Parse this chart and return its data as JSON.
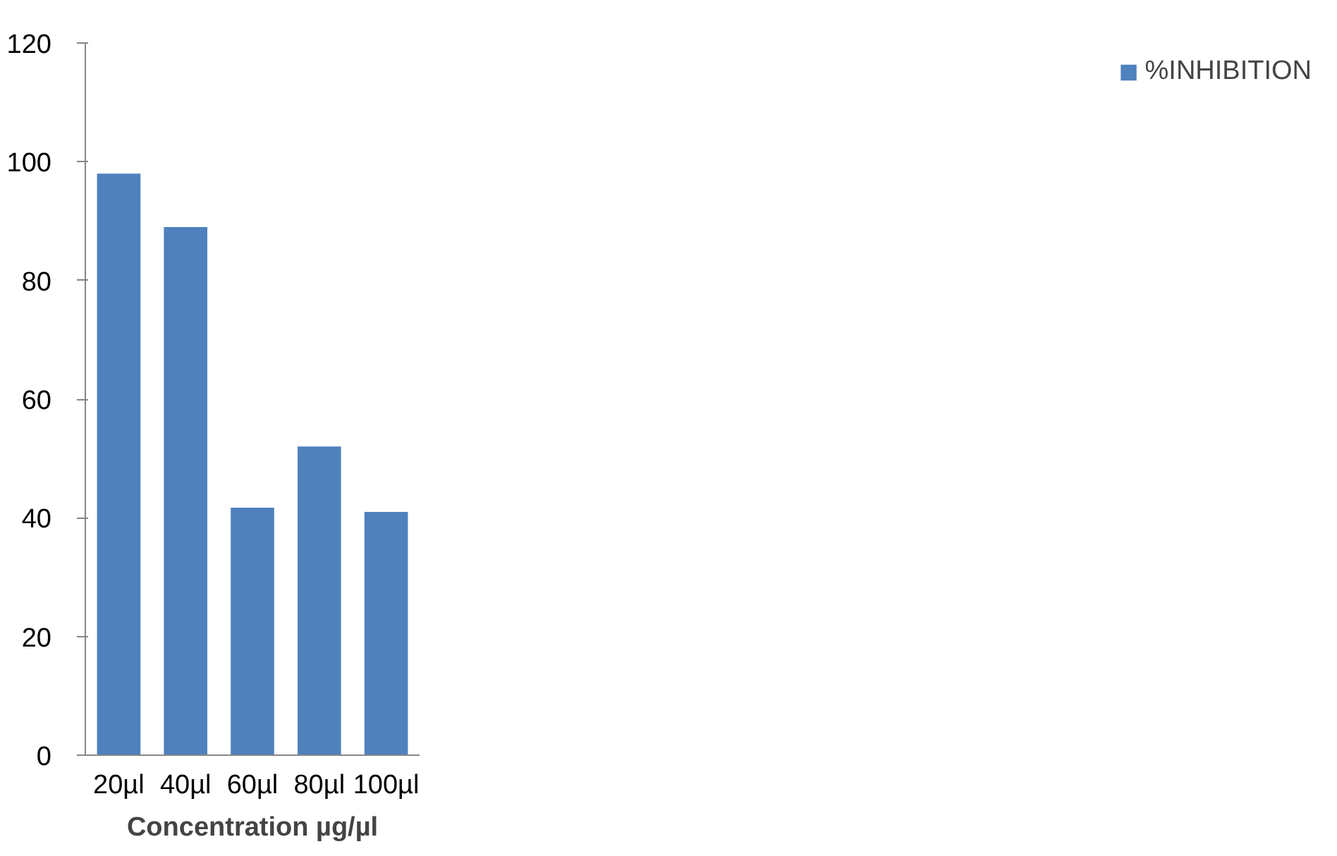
{
  "chart_data": {
    "type": "bar",
    "xlabel": "Concentration µg/µl",
    "categories": [
      "20µl",
      "40µl",
      "60µl",
      "80µl",
      "100µl"
    ],
    "series": [
      {
        "name": "%INHIBITION",
        "color": "#4f81bd",
        "values": [
          98,
          89,
          41.7,
          52,
          41
        ]
      }
    ],
    "ylim": [
      0,
      120
    ],
    "yticks": [
      0,
      20,
      40,
      60,
      80,
      100,
      120
    ],
    "grid": false,
    "legend": "right"
  }
}
